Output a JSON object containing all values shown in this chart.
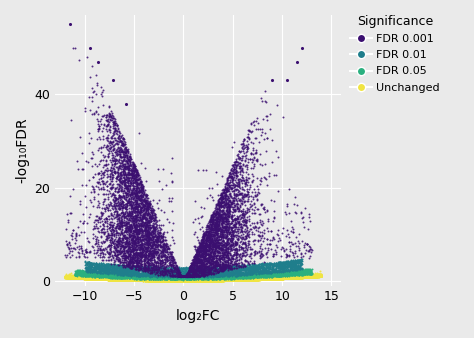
{
  "title": "",
  "xlabel": "log₂FC",
  "ylabel": "-log₁₀FDR",
  "xlim": [
    -13,
    16
  ],
  "ylim": [
    -1,
    57
  ],
  "xticks": [
    -10,
    -5,
    0,
    5,
    10,
    15
  ],
  "yticks": [
    0,
    20,
    40
  ],
  "bg_color": "#EAEAEA",
  "grid_color": "white",
  "colors": {
    "fdr001": "#3B0F70",
    "fdr01": "#1F7E8C",
    "fdr05": "#2BB07F",
    "unchanged": "#F0E442"
  },
  "legend_title": "Significance",
  "legend_labels": [
    "FDR 0.001",
    "FDR 0.01",
    "FDR 0.05",
    "Unchanged"
  ],
  "seed": 42
}
